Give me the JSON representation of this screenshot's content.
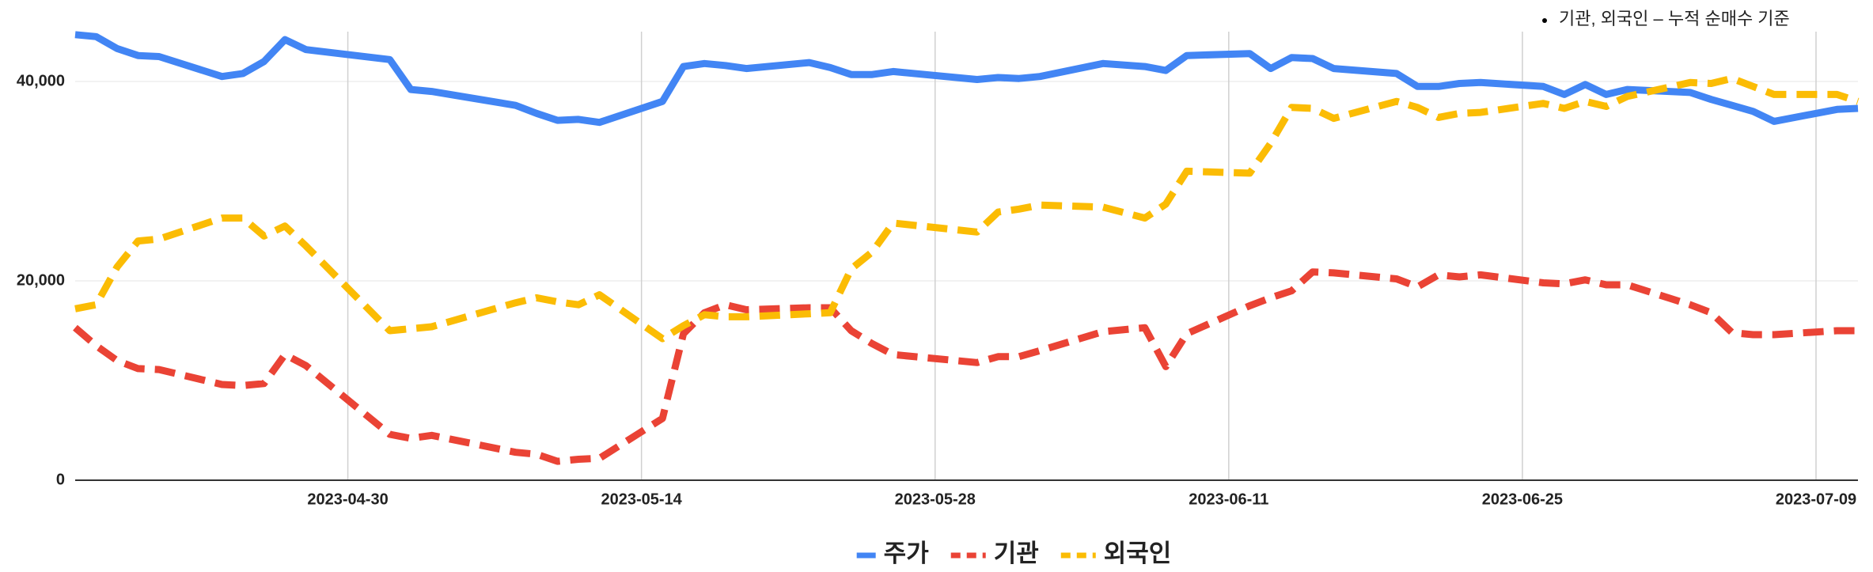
{
  "chart_data": {
    "type": "line",
    "annotation": "기관, 외국인 – 누적 순매수 기준",
    "x": [
      "2023-04-17",
      "2023-04-18",
      "2023-04-19",
      "2023-04-20",
      "2023-04-21",
      "2023-04-24",
      "2023-04-25",
      "2023-04-26",
      "2023-04-27",
      "2023-04-28",
      "2023-05-02",
      "2023-05-03",
      "2023-05-04",
      "2023-05-08",
      "2023-05-09",
      "2023-05-10",
      "2023-05-11",
      "2023-05-12",
      "2023-05-15",
      "2023-05-16",
      "2023-05-17",
      "2023-05-18",
      "2023-05-19",
      "2023-05-22",
      "2023-05-23",
      "2023-05-24",
      "2023-05-25",
      "2023-05-26",
      "2023-05-30",
      "2023-05-31",
      "2023-06-01",
      "2023-06-02",
      "2023-06-05",
      "2023-06-07",
      "2023-06-08",
      "2023-06-09",
      "2023-06-12",
      "2023-06-13",
      "2023-06-14",
      "2023-06-15",
      "2023-06-16",
      "2023-06-19",
      "2023-06-20",
      "2023-06-21",
      "2023-06-22",
      "2023-06-23",
      "2023-06-26",
      "2023-06-27",
      "2023-06-28",
      "2023-06-29",
      "2023-06-30",
      "2023-07-03",
      "2023-07-04",
      "2023-07-05",
      "2023-07-06",
      "2023-07-07",
      "2023-07-10",
      "2023-07-11"
    ],
    "series": [
      {
        "name": "주가",
        "color": "#4285f4",
        "dashed": false,
        "values": [
          44700,
          44500,
          43300,
          42600,
          42500,
          40500,
          40800,
          42000,
          44200,
          43200,
          42200,
          39200,
          39000,
          37600,
          36800,
          36100,
          36200,
          35900,
          38000,
          41500,
          41800,
          41600,
          41300,
          41900,
          41400,
          40700,
          40700,
          41000,
          40200,
          40400,
          40300,
          40500,
          41800,
          41500,
          41100,
          42600,
          42800,
          41300,
          42400,
          42300,
          41300,
          40800,
          39500,
          39500,
          39800,
          39900,
          39500,
          38700,
          39700,
          38700,
          39200,
          38900,
          38200,
          37600,
          37000,
          36000,
          37200,
          37300
        ]
      },
      {
        "name": "기관",
        "color": "#ea4335",
        "dashed": true,
        "values": [
          15300,
          13500,
          12000,
          11200,
          11100,
          9600,
          9500,
          9700,
          12600,
          11500,
          4600,
          4200,
          4500,
          2800,
          2600,
          1900,
          2100,
          2200,
          6200,
          14700,
          16800,
          17600,
          17100,
          17300,
          17300,
          15000,
          13700,
          12600,
          11800,
          12400,
          12400,
          13000,
          14900,
          15300,
          11400,
          14700,
          17500,
          18300,
          19000,
          20900,
          20800,
          20200,
          19400,
          20600,
          20400,
          20600,
          19800,
          19700,
          20100,
          19600,
          19600,
          17600,
          16800,
          14800,
          14600,
          14600,
          15000,
          15000
        ]
      },
      {
        "name": "외국인",
        "color": "#fbbc04",
        "dashed": true,
        "values": [
          17200,
          17600,
          21400,
          24000,
          24200,
          26300,
          26300,
          24500,
          25500,
          23500,
          15000,
          15200,
          15400,
          17800,
          18300,
          17900,
          17600,
          18600,
          14200,
          15500,
          16600,
          16400,
          16400,
          16700,
          16800,
          21200,
          22900,
          25800,
          24900,
          26900,
          27200,
          27600,
          27400,
          26300,
          27700,
          31000,
          30800,
          33800,
          37400,
          37300,
          36300,
          38000,
          37400,
          36400,
          36800,
          36900,
          37800,
          37300,
          38000,
          37500,
          38500,
          39900,
          39800,
          40300,
          39500,
          38700,
          38700,
          38000
        ]
      }
    ],
    "xlim": [
      "2023-04-17",
      "2023-07-11"
    ],
    "xticks": [
      "2023-04-30",
      "2023-05-14",
      "2023-05-28",
      "2023-06-11",
      "2023-06-25",
      "2023-07-09"
    ],
    "ylim": [
      0,
      45000
    ],
    "yticks": [
      0,
      {
        "value": 20000,
        "label": "20,000"
      },
      {
        "value": 40000,
        "label": "40,000"
      }
    ],
    "grid": true,
    "legend": "bottom"
  }
}
